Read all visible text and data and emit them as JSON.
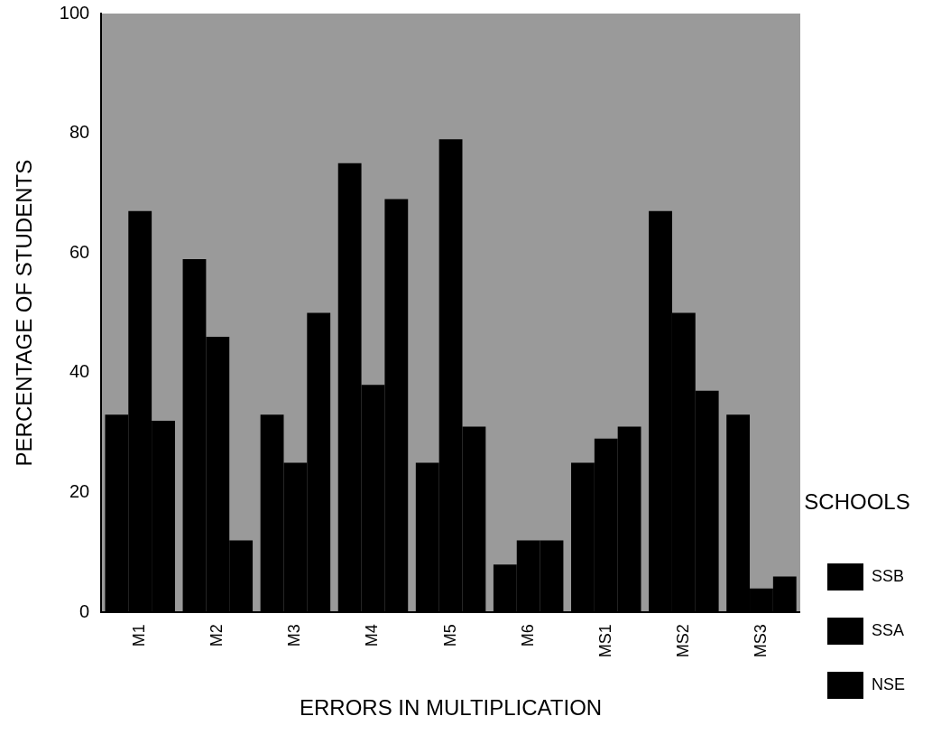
{
  "chart_data": {
    "type": "bar",
    "xlabel": "ERRORS IN MULTIPLICATION",
    "ylabel": "PERCENTAGE OF STUDENTS",
    "legend_title": "SCHOOLS",
    "legend": "right",
    "categories": [
      "M1",
      "M2",
      "M3",
      "M4",
      "M5",
      "M6",
      "MS1",
      "MS2",
      "MS3"
    ],
    "series": [
      {
        "name": "SSB",
        "color": "#000000",
        "values": [
          33,
          59,
          33,
          75,
          25,
          8,
          25,
          67,
          33
        ]
      },
      {
        "name": "SSA",
        "color": "#000000",
        "values": [
          67,
          46,
          25,
          38,
          79,
          12,
          29,
          50,
          4
        ]
      },
      {
        "name": "NSE",
        "color": "#000000",
        "values": [
          32,
          12,
          50,
          69,
          31,
          12,
          31,
          37,
          6
        ]
      }
    ],
    "ylim": [
      0,
      100
    ],
    "yticks": [
      0,
      20,
      40,
      60,
      80,
      100
    ],
    "grid": false
  }
}
